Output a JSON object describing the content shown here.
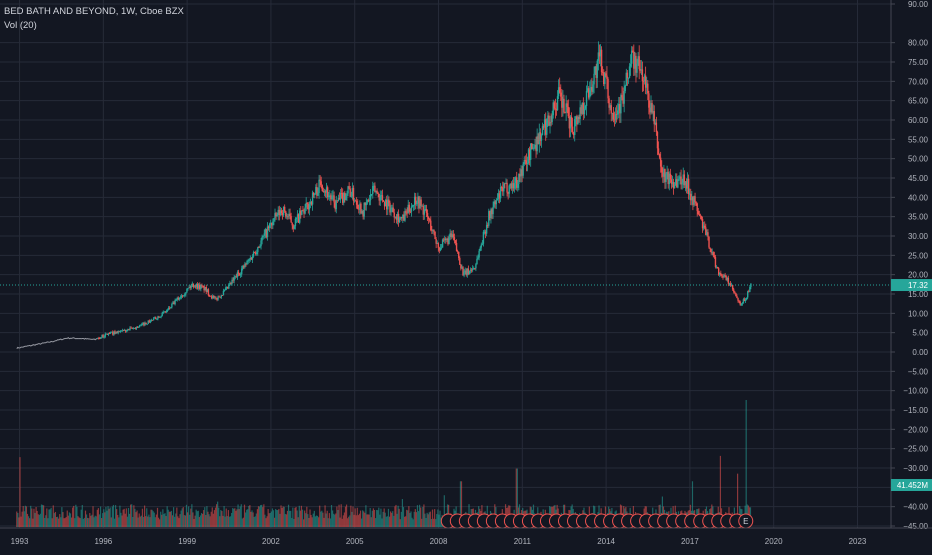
{
  "header": {
    "symbol_line": "BED BATH AND BEYOND, 1W, Cboe BZX",
    "indicator_line": "Vol (20)"
  },
  "colors": {
    "background": "#131722",
    "grid": "#262b38",
    "text": "#b2b5be",
    "up": "#26a69a",
    "down": "#ef5350",
    "price_line": "#26a69a",
    "early_line": "#9598a1",
    "event_stroke": "#ef5350"
  },
  "chart_data": {
    "type": "candlestick",
    "title": "BED BATH AND BEYOND, 1W, Cboe BZX",
    "indicator": "Vol (20)",
    "x_ticks": [
      "1993",
      "1996",
      "1999",
      "2002",
      "2005",
      "2008",
      "2011",
      "2014",
      "2017",
      "2020",
      "2023"
    ],
    "y_ticks": [
      "90.00",
      "80.00",
      "75.00",
      "70.00",
      "65.00",
      "60.00",
      "55.00",
      "50.00",
      "45.00",
      "40.00",
      "35.00",
      "30.00",
      "25.00",
      "20.00",
      "15.00",
      "10.00",
      "5.00",
      "0.00",
      "−5.00",
      "−10.00",
      "−15.00",
      "−20.00",
      "−25.00",
      "−30.00",
      "−35.00",
      "−40.00",
      "−45.00"
    ],
    "y_range": [
      -45,
      90
    ],
    "x_range": [
      1992.3,
      2024.2
    ],
    "grid": true,
    "last_price": {
      "value": 17.32,
      "label": "17.32"
    },
    "last_volume": {
      "label": "41.452M"
    },
    "price_path": [
      [
        1992.9,
        1.0
      ],
      [
        1993.5,
        1.8
      ],
      [
        1994.1,
        2.6
      ],
      [
        1994.7,
        3.6
      ],
      [
        1995.2,
        3.5
      ],
      [
        1995.7,
        3.2
      ],
      [
        1996.2,
        4.8
      ],
      [
        1996.7,
        5.3
      ],
      [
        1997.2,
        6.4
      ],
      [
        1997.8,
        8.4
      ],
      [
        1998.3,
        10.8
      ],
      [
        1998.8,
        14.8
      ],
      [
        1999.2,
        17.5
      ],
      [
        1999.6,
        16.5
      ],
      [
        2000.0,
        13.5
      ],
      [
        2000.4,
        16.0
      ],
      [
        2000.8,
        20.0
      ],
      [
        2001.2,
        23.5
      ],
      [
        2001.6,
        28.0
      ],
      [
        2002.0,
        33.0
      ],
      [
        2002.4,
        37.0
      ],
      [
        2002.8,
        33.0
      ],
      [
        2003.3,
        37.5
      ],
      [
        2003.8,
        44.0
      ],
      [
        2004.3,
        38.0
      ],
      [
        2004.8,
        42.0
      ],
      [
        2005.3,
        36.5
      ],
      [
        2005.7,
        42.0
      ],
      [
        2006.2,
        38.0
      ],
      [
        2006.7,
        34.0
      ],
      [
        2007.2,
        40.0
      ],
      [
        2007.6,
        35.0
      ],
      [
        2008.0,
        27.0
      ],
      [
        2008.5,
        30.0
      ],
      [
        2008.9,
        20.0
      ],
      [
        2009.3,
        22.0
      ],
      [
        2009.8,
        35.0
      ],
      [
        2010.3,
        42.0
      ],
      [
        2010.8,
        44.0
      ],
      [
        2011.3,
        52.0
      ],
      [
        2011.8,
        58.0
      ],
      [
        2012.3,
        66.0
      ],
      [
        2012.8,
        58.0
      ],
      [
        2013.3,
        66.0
      ],
      [
        2013.8,
        76.0
      ],
      [
        2014.2,
        62.0
      ],
      [
        2014.6,
        65.0
      ],
      [
        2014.9,
        76.0
      ],
      [
        2015.3,
        72.0
      ],
      [
        2015.7,
        60.0
      ],
      [
        2016.0,
        46.0
      ],
      [
        2016.4,
        44.0
      ],
      [
        2016.8,
        45.0
      ],
      [
        2017.2,
        38.0
      ],
      [
        2017.6,
        30.0
      ],
      [
        2018.0,
        21.0
      ],
      [
        2018.4,
        18.0
      ],
      [
        2018.8,
        12.0
      ],
      [
        2019.0,
        14.0
      ],
      [
        2019.2,
        17.3
      ]
    ],
    "volume_spikes": [
      [
        1993.0,
        0.55
      ],
      [
        1994.2,
        0.17
      ],
      [
        1996.0,
        0.14
      ],
      [
        2000.1,
        0.2
      ],
      [
        2002.4,
        0.15
      ],
      [
        2006.7,
        0.22
      ],
      [
        2008.2,
        0.25
      ],
      [
        2008.8,
        0.36
      ],
      [
        2009.1,
        0.18
      ],
      [
        2010.8,
        0.46
      ],
      [
        2016.0,
        0.24
      ],
      [
        2017.1,
        0.36
      ],
      [
        2018.1,
        0.56
      ],
      [
        2018.7,
        0.42
      ],
      [
        2019.0,
        1.0
      ]
    ],
    "event_markers": {
      "start": 2008.35,
      "end": 2019.0,
      "count": 34,
      "last_label": "E"
    }
  }
}
